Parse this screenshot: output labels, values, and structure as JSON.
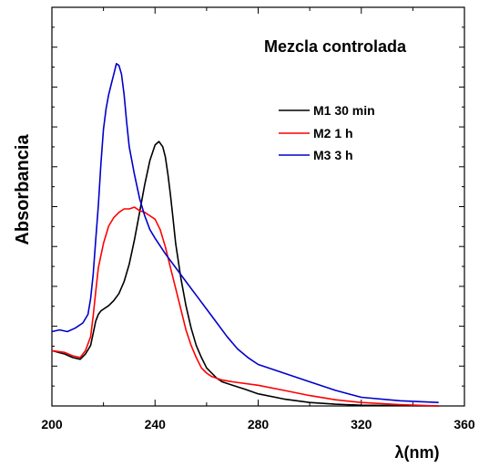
{
  "chart_data": {
    "type": "line",
    "title": "Mezcla controlada",
    "xlabel": "λ(nm)",
    "ylabel": "Absorbancia",
    "xlim": [
      200,
      360
    ],
    "ylim": [
      0,
      1.0
    ],
    "x_ticks": [
      "200",
      "240",
      "280",
      "320",
      "360"
    ],
    "grid": false,
    "legend_position": "top-right",
    "series": [
      {
        "name": "M1 30 min",
        "color": "#000000",
        "x": [
          200,
          205,
          208,
          211,
          213,
          215,
          216,
          217,
          218,
          219,
          220,
          222,
          224,
          226,
          228,
          230,
          232,
          234,
          236,
          238,
          240,
          241.5,
          243,
          244,
          245,
          246,
          247,
          248,
          250,
          252,
          254,
          256,
          258,
          260,
          262,
          264,
          266,
          270,
          275,
          280,
          290,
          300,
          310,
          320,
          335,
          350
        ],
        "y": [
          0.16,
          0.15,
          0.14,
          0.135,
          0.15,
          0.175,
          0.21,
          0.245,
          0.265,
          0.275,
          0.28,
          0.29,
          0.305,
          0.325,
          0.36,
          0.41,
          0.48,
          0.56,
          0.64,
          0.71,
          0.755,
          0.765,
          0.75,
          0.72,
          0.67,
          0.61,
          0.54,
          0.47,
          0.37,
          0.29,
          0.225,
          0.175,
          0.14,
          0.11,
          0.095,
          0.08,
          0.07,
          0.06,
          0.048,
          0.035,
          0.02,
          0.01,
          0.005,
          0.002,
          0.001,
          0.0
        ]
      },
      {
        "name": "M2 1 h",
        "color": "#ff0000",
        "x": [
          200,
          205,
          208,
          211,
          213,
          215,
          216,
          217,
          218,
          220,
          222,
          224,
          226,
          228,
          230,
          232,
          234,
          236,
          238,
          240,
          242,
          244,
          246,
          248,
          250,
          252,
          254,
          256,
          258,
          260,
          262,
          266,
          270,
          280,
          290,
          300,
          310,
          320,
          335,
          350
        ],
        "y": [
          0.16,
          0.155,
          0.145,
          0.14,
          0.16,
          0.2,
          0.26,
          0.33,
          0.4,
          0.47,
          0.52,
          0.545,
          0.56,
          0.57,
          0.57,
          0.575,
          0.565,
          0.56,
          0.55,
          0.54,
          0.51,
          0.46,
          0.4,
          0.34,
          0.28,
          0.22,
          0.175,
          0.14,
          0.11,
          0.095,
          0.085,
          0.075,
          0.07,
          0.06,
          0.045,
          0.03,
          0.018,
          0.01,
          0.004,
          0.0
        ]
      },
      {
        "name": "M3 3 h",
        "color": "#0000cc",
        "x": [
          200,
          203,
          206,
          209,
          212,
          214,
          215,
          216,
          217,
          218,
          219,
          220,
          221,
          222,
          223,
          224,
          225,
          226,
          227,
          228,
          229,
          230,
          232,
          234,
          236,
          238,
          240,
          244,
          248,
          252,
          256,
          260,
          264,
          268,
          272,
          276,
          280,
          290,
          300,
          310,
          320,
          335,
          350
        ],
        "y": [
          0.215,
          0.22,
          0.215,
          0.225,
          0.24,
          0.265,
          0.31,
          0.38,
          0.48,
          0.58,
          0.7,
          0.8,
          0.86,
          0.9,
          0.93,
          0.96,
          0.99,
          0.985,
          0.96,
          0.9,
          0.82,
          0.75,
          0.67,
          0.6,
          0.55,
          0.51,
          0.485,
          0.44,
          0.4,
          0.36,
          0.32,
          0.28,
          0.24,
          0.2,
          0.165,
          0.14,
          0.12,
          0.095,
          0.07,
          0.045,
          0.025,
          0.015,
          0.01
        ]
      }
    ]
  }
}
